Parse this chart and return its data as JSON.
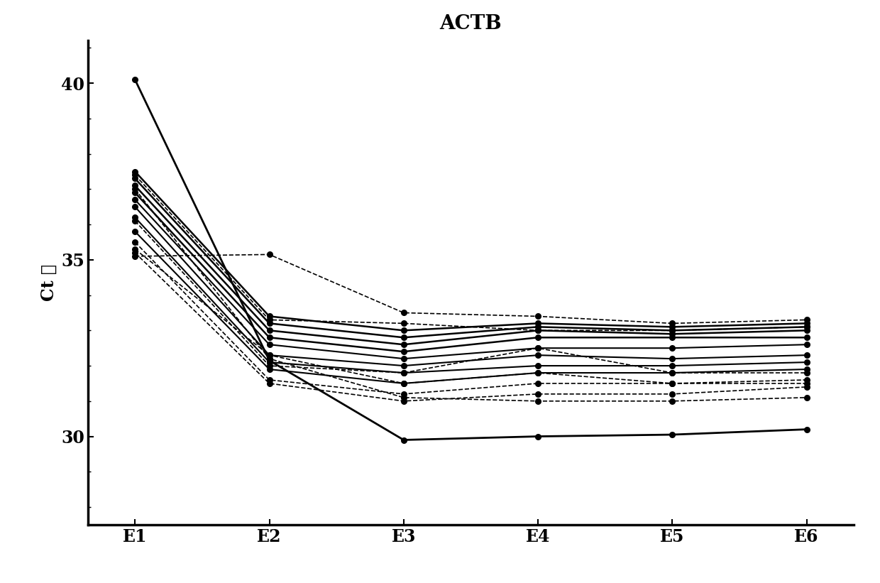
{
  "title": "ACTB",
  "ylabel": "Ct 局",
  "xtick_labels": [
    "E1",
    "E2",
    "E3",
    "E4",
    "E5",
    "E6"
  ],
  "ylim": [
    27.5,
    41.2
  ],
  "background_color": "#ffffff",
  "series": [
    {
      "values": [
        40.1,
        32.15,
        29.9,
        30.0,
        30.05,
        30.2
      ],
      "linestyle": "solid",
      "lw": 2.0
    },
    {
      "values": [
        37.5,
        33.4,
        33.0,
        33.2,
        33.1,
        33.2
      ],
      "linestyle": "solid",
      "lw": 1.8
    },
    {
      "values": [
        37.3,
        33.2,
        32.8,
        33.1,
        33.0,
        33.1
      ],
      "linestyle": "solid",
      "lw": 1.8
    },
    {
      "values": [
        37.1,
        33.0,
        32.6,
        33.0,
        32.9,
        33.0
      ],
      "linestyle": "solid",
      "lw": 1.8
    },
    {
      "values": [
        36.9,
        32.8,
        32.4,
        32.8,
        32.8,
        32.8
      ],
      "linestyle": "solid",
      "lw": 1.8
    },
    {
      "values": [
        36.7,
        32.6,
        32.2,
        32.5,
        32.5,
        32.6
      ],
      "linestyle": "solid",
      "lw": 1.5
    },
    {
      "values": [
        36.5,
        32.3,
        32.0,
        32.3,
        32.2,
        32.3
      ],
      "linestyle": "solid",
      "lw": 1.5
    },
    {
      "values": [
        36.2,
        32.1,
        31.8,
        32.0,
        32.0,
        32.1
      ],
      "linestyle": "solid",
      "lw": 1.5
    },
    {
      "values": [
        35.8,
        31.9,
        31.5,
        31.8,
        31.8,
        31.9
      ],
      "linestyle": "solid",
      "lw": 1.5
    },
    {
      "values": [
        35.5,
        31.6,
        31.2,
        31.5,
        31.5,
        31.6
      ],
      "linestyle": "dashed",
      "lw": 1.2
    },
    {
      "values": [
        35.2,
        31.5,
        31.0,
        31.2,
        31.2,
        31.4
      ],
      "linestyle": "dashed",
      "lw": 1.2
    },
    {
      "values": [
        35.1,
        35.15,
        33.5,
        33.4,
        33.2,
        33.3
      ],
      "linestyle": "dashed",
      "lw": 1.2
    },
    {
      "values": [
        37.0,
        32.2,
        31.1,
        31.0,
        31.0,
        31.1
      ],
      "linestyle": "dashed",
      "lw": 1.2
    },
    {
      "values": [
        36.1,
        32.0,
        31.8,
        32.5,
        31.8,
        31.8
      ],
      "linestyle": "dashed",
      "lw": 1.2
    },
    {
      "values": [
        35.3,
        32.3,
        31.5,
        31.8,
        31.5,
        31.5
      ],
      "linestyle": "dashed",
      "lw": 1.2
    },
    {
      "values": [
        37.4,
        33.3,
        33.2,
        33.0,
        33.0,
        33.1
      ],
      "linestyle": "dashed",
      "lw": 1.2
    }
  ],
  "line_color": "#000000",
  "markersize": 5.5,
  "title_fontsize": 20,
  "label_fontsize": 17,
  "tick_fontsize": 17
}
